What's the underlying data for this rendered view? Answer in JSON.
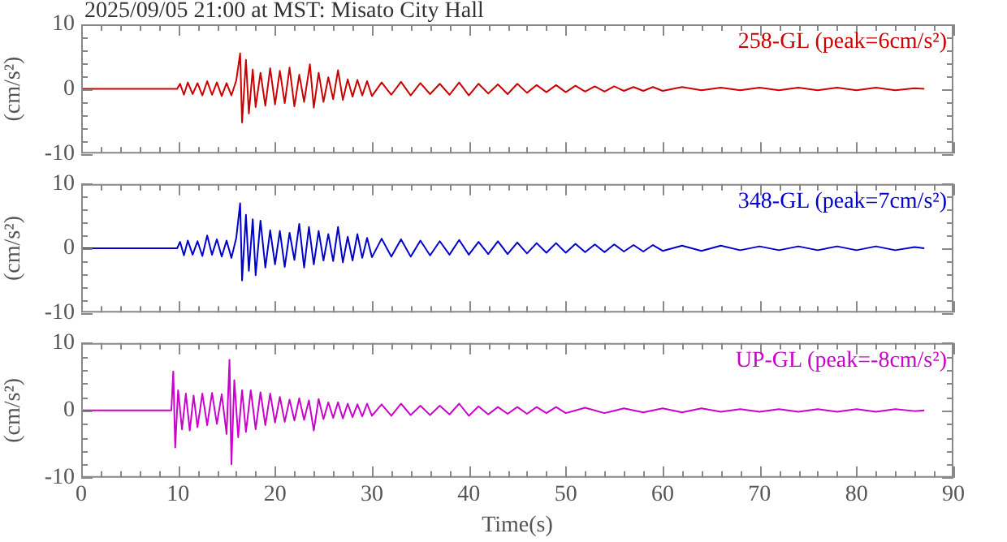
{
  "chart_data": [
    {
      "type": "line",
      "title": "2025/09/05 21:00 at MST: Misato City Hall",
      "ylabel": "(cm/s²)",
      "marker": "none",
      "tick_labels": "y",
      "xlim": [
        0,
        90
      ],
      "xticks": [
        0,
        {
          "value": 2,
          "label": null
        },
        {
          "value": 4,
          "label": null
        },
        {
          "value": 6,
          "label": null
        },
        {
          "value": 8,
          "label": null
        },
        10,
        {
          "value": 12,
          "label": null
        },
        {
          "value": 14,
          "label": null
        },
        {
          "value": 16,
          "label": null
        },
        {
          "value": 18,
          "label": null
        },
        20,
        {
          "value": 22,
          "label": null
        },
        {
          "value": 24,
          "label": null
        },
        {
          "value": 26,
          "label": null
        },
        {
          "value": 28,
          "label": null
        },
        30,
        {
          "value": 32,
          "label": null
        },
        {
          "value": 34,
          "label": null
        },
        {
          "value": 36,
          "label": null
        },
        {
          "value": 38,
          "label": null
        },
        40,
        {
          "value": 42,
          "label": null
        },
        {
          "value": 44,
          "label": null
        },
        {
          "value": 46,
          "label": null
        },
        {
          "value": 48,
          "label": null
        },
        50,
        {
          "value": 52,
          "label": null
        },
        {
          "value": 54,
          "label": null
        },
        {
          "value": 56,
          "label": null
        },
        {
          "value": 58,
          "label": null
        },
        60,
        {
          "value": 62,
          "label": null
        },
        {
          "value": 64,
          "label": null
        },
        {
          "value": 66,
          "label": null
        },
        {
          "value": 68,
          "label": null
        },
        70,
        {
          "value": 72,
          "label": null
        },
        {
          "value": 74,
          "label": null
        },
        {
          "value": 76,
          "label": null
        },
        {
          "value": 78,
          "label": null
        },
        80,
        {
          "value": 82,
          "label": null
        },
        {
          "value": 84,
          "label": null
        },
        {
          "value": 86,
          "label": null
        },
        {
          "value": 88,
          "label": null
        },
        90
      ],
      "ylim": [
        -10,
        10
      ],
      "yticks": [
        -10,
        {
          "value": -8,
          "label": null
        },
        {
          "value": -6,
          "label": null
        },
        {
          "value": -4,
          "label": null
        },
        {
          "value": -2,
          "label": null
        },
        0,
        {
          "value": 2,
          "label": null
        },
        {
          "value": 4,
          "label": null
        },
        {
          "value": 6,
          "label": null
        },
        {
          "value": 8,
          "label": null
        },
        10
      ],
      "series": [
        {
          "name": "258-GL (peak=6cm/s²)",
          "color": "#cc0000",
          "x": [
            0,
            9.9,
            10.2,
            10.6,
            11,
            11.5,
            12,
            12.5,
            13,
            13.5,
            14,
            14.5,
            15,
            15.5,
            16,
            16.4,
            16.6,
            17,
            17.3,
            17.7,
            18,
            18.5,
            19,
            19.5,
            20,
            20.5,
            21,
            21.5,
            22,
            22.5,
            23,
            23.6,
            24,
            24.5,
            25,
            25.5,
            26,
            26.5,
            27,
            27.5,
            28,
            28.5,
            29,
            29.5,
            30,
            31,
            32,
            33,
            34,
            35,
            36,
            37,
            38,
            39,
            40,
            41,
            42,
            43,
            44,
            45,
            46,
            47,
            48,
            49,
            50,
            51,
            52,
            53,
            54,
            55,
            56,
            57,
            58,
            59,
            60,
            62,
            64,
            66,
            68,
            70,
            72,
            74,
            76,
            78,
            80,
            82,
            84,
            86,
            87
          ],
          "values": [
            0,
            0,
            0.8,
            -0.9,
            1,
            -0.8,
            0.9,
            -1,
            1.2,
            -0.9,
            1,
            -1.1,
            0.9,
            -1,
            1.3,
            5.5,
            -5.2,
            4.5,
            -3.8,
            3,
            -2.8,
            2.5,
            -2.6,
            3.2,
            -2.4,
            2.8,
            -2.2,
            3.3,
            -2.7,
            2.2,
            -2,
            3.8,
            -2.9,
            2.5,
            -2,
            1.8,
            -1.6,
            2.9,
            -1.7,
            1.5,
            -1.2,
            1.4,
            -1,
            1.2,
            -1.1,
            1,
            -0.9,
            1.1,
            -1,
            0.9,
            -0.8,
            0.8,
            -0.9,
            1,
            -1,
            0.8,
            -0.7,
            0.7,
            -0.8,
            0.8,
            -0.6,
            0.6,
            -0.5,
            0.6,
            -0.5,
            0.5,
            -0.4,
            0.4,
            -0.4,
            0.4,
            -0.3,
            0.3,
            -0.3,
            0.3,
            -0.3,
            0.3,
            -0.2,
            0.2,
            -0.2,
            0.2,
            -0.2,
            0.2,
            -0.2,
            0.2,
            -0.2,
            0.2,
            -0.2,
            0.1,
            0
          ]
        }
      ]
    },
    {
      "type": "line",
      "ylabel": "(cm/s²)",
      "marker": "none",
      "tick_labels": "y",
      "xlim": [
        0,
        90
      ],
      "xticks": [
        0,
        {
          "value": 2,
          "label": null
        },
        {
          "value": 4,
          "label": null
        },
        {
          "value": 6,
          "label": null
        },
        {
          "value": 8,
          "label": null
        },
        10,
        {
          "value": 12,
          "label": null
        },
        {
          "value": 14,
          "label": null
        },
        {
          "value": 16,
          "label": null
        },
        {
          "value": 18,
          "label": null
        },
        20,
        {
          "value": 22,
          "label": null
        },
        {
          "value": 24,
          "label": null
        },
        {
          "value": 26,
          "label": null
        },
        {
          "value": 28,
          "label": null
        },
        30,
        {
          "value": 32,
          "label": null
        },
        {
          "value": 34,
          "label": null
        },
        {
          "value": 36,
          "label": null
        },
        {
          "value": 38,
          "label": null
        },
        40,
        {
          "value": 42,
          "label": null
        },
        {
          "value": 44,
          "label": null
        },
        {
          "value": 46,
          "label": null
        },
        {
          "value": 48,
          "label": null
        },
        50,
        {
          "value": 52,
          "label": null
        },
        {
          "value": 54,
          "label": null
        },
        {
          "value": 56,
          "label": null
        },
        {
          "value": 58,
          "label": null
        },
        60,
        {
          "value": 62,
          "label": null
        },
        {
          "value": 64,
          "label": null
        },
        {
          "value": 66,
          "label": null
        },
        {
          "value": 68,
          "label": null
        },
        70,
        {
          "value": 72,
          "label": null
        },
        {
          "value": 74,
          "label": null
        },
        {
          "value": 76,
          "label": null
        },
        {
          "value": 78,
          "label": null
        },
        80,
        {
          "value": 82,
          "label": null
        },
        {
          "value": 84,
          "label": null
        },
        {
          "value": 86,
          "label": null
        },
        {
          "value": 88,
          "label": null
        },
        90
      ],
      "ylim": [
        -10,
        10
      ],
      "yticks": [
        -10,
        {
          "value": -8,
          "label": null
        },
        {
          "value": -6,
          "label": null
        },
        {
          "value": -4,
          "label": null
        },
        {
          "value": -2,
          "label": null
        },
        0,
        {
          "value": 2,
          "label": null
        },
        {
          "value": 4,
          "label": null
        },
        {
          "value": 6,
          "label": null
        },
        {
          "value": 8,
          "label": null
        },
        10
      ],
      "series": [
        {
          "name": "348-GL (peak=7cm/s²)",
          "color": "#0000cc",
          "x": [
            0,
            9.9,
            10.2,
            10.6,
            11,
            11.5,
            12,
            12.5,
            13,
            13.5,
            14,
            14.5,
            15,
            15.5,
            16,
            16.4,
            16.6,
            17,
            17.3,
            17.7,
            18,
            18.5,
            19,
            19.5,
            20,
            20.5,
            21,
            21.5,
            22,
            22.5,
            23,
            23.5,
            24,
            24.5,
            25,
            25.5,
            26,
            26.5,
            27,
            27.5,
            28,
            28.5,
            29,
            29.5,
            30,
            31,
            32,
            33,
            34,
            35,
            36,
            37,
            38,
            39,
            40,
            41,
            42,
            43,
            44,
            45,
            46,
            47,
            48,
            49,
            50,
            51,
            52,
            53,
            54,
            55,
            56,
            57,
            58,
            59,
            60,
            62,
            64,
            66,
            68,
            70,
            72,
            74,
            76,
            78,
            80,
            82,
            84,
            86,
            87
          ],
          "values": [
            0,
            0,
            1,
            -1.1,
            1.2,
            -1,
            1.1,
            -1.2,
            2,
            -1,
            1.4,
            -1.3,
            1.2,
            -1.5,
            1.6,
            7,
            -5,
            5.2,
            -3.5,
            4.5,
            -4.2,
            4.3,
            -3,
            2.8,
            -2.5,
            2.7,
            -2.9,
            2.4,
            -1.8,
            3.8,
            -3,
            3.3,
            -2.5,
            2.7,
            -1.9,
            2.2,
            -2,
            3.3,
            -2.2,
            1.8,
            -1.9,
            2.2,
            -1.5,
            1.6,
            -1.4,
            1.5,
            -1.3,
            1.4,
            -1.3,
            1.2,
            -1.1,
            1.1,
            -1,
            1.3,
            -1,
            1,
            -0.9,
            1.1,
            -0.9,
            0.9,
            -0.8,
            0.8,
            -0.7,
            0.8,
            -0.7,
            0.7,
            -0.6,
            0.6,
            -0.6,
            0.6,
            -0.5,
            0.5,
            -0.5,
            0.5,
            -0.4,
            0.4,
            -0.4,
            0.4,
            -0.3,
            0.3,
            -0.3,
            0.3,
            -0.3,
            0.3,
            -0.3,
            0.3,
            -0.3,
            0.2,
            0
          ]
        }
      ]
    },
    {
      "type": "line",
      "ylabel": "(cm/s²)",
      "xlabel": "Time(s)",
      "marker": "none",
      "xlim": [
        0,
        90
      ],
      "xticks": [
        0,
        {
          "value": 2,
          "label": null
        },
        {
          "value": 4,
          "label": null
        },
        {
          "value": 6,
          "label": null
        },
        {
          "value": 8,
          "label": null
        },
        10,
        {
          "value": 12,
          "label": null
        },
        {
          "value": 14,
          "label": null
        },
        {
          "value": 16,
          "label": null
        },
        {
          "value": 18,
          "label": null
        },
        20,
        {
          "value": 22,
          "label": null
        },
        {
          "value": 24,
          "label": null
        },
        {
          "value": 26,
          "label": null
        },
        {
          "value": 28,
          "label": null
        },
        30,
        {
          "value": 32,
          "label": null
        },
        {
          "value": 34,
          "label": null
        },
        {
          "value": 36,
          "label": null
        },
        {
          "value": 38,
          "label": null
        },
        40,
        {
          "value": 42,
          "label": null
        },
        {
          "value": 44,
          "label": null
        },
        {
          "value": 46,
          "label": null
        },
        {
          "value": 48,
          "label": null
        },
        50,
        {
          "value": 52,
          "label": null
        },
        {
          "value": 54,
          "label": null
        },
        {
          "value": 56,
          "label": null
        },
        {
          "value": 58,
          "label": null
        },
        60,
        {
          "value": 62,
          "label": null
        },
        {
          "value": 64,
          "label": null
        },
        {
          "value": 66,
          "label": null
        },
        {
          "value": 68,
          "label": null
        },
        70,
        {
          "value": 72,
          "label": null
        },
        {
          "value": 74,
          "label": null
        },
        {
          "value": 76,
          "label": null
        },
        {
          "value": 78,
          "label": null
        },
        80,
        {
          "value": 82,
          "label": null
        },
        {
          "value": 84,
          "label": null
        },
        {
          "value": 86,
          "label": null
        },
        {
          "value": 88,
          "label": null
        },
        90
      ],
      "ylim": [
        -10,
        10
      ],
      "yticks": [
        -10,
        {
          "value": -8,
          "label": null
        },
        {
          "value": -6,
          "label": null
        },
        {
          "value": -4,
          "label": null
        },
        {
          "value": -2,
          "label": null
        },
        0,
        {
          "value": 2,
          "label": null
        },
        {
          "value": 4,
          "label": null
        },
        {
          "value": 6,
          "label": null
        },
        {
          "value": 8,
          "label": null
        },
        10
      ],
      "series": [
        {
          "name": "UP-GL (peak=-8cm/s²)",
          "color": "#cc00cc",
          "x": [
            0,
            9.3,
            9.5,
            9.7,
            10,
            10.4,
            10.8,
            11.2,
            11.6,
            12,
            12.5,
            13,
            13.5,
            14,
            14.5,
            15,
            15.3,
            15.5,
            15.8,
            16.2,
            16.6,
            17,
            17.5,
            18,
            18.5,
            19,
            19.5,
            20,
            20.5,
            21,
            21.5,
            22,
            22.5,
            23,
            23.5,
            24,
            24.5,
            25,
            25.5,
            26,
            26.5,
            27,
            27.5,
            28,
            28.5,
            29,
            29.5,
            30,
            31,
            32,
            33,
            34,
            35,
            36,
            37,
            38,
            39,
            40,
            41,
            42,
            43,
            44,
            45,
            46,
            47,
            48,
            49,
            50,
            52,
            54,
            56,
            58,
            60,
            62,
            64,
            66,
            68,
            70,
            72,
            74,
            76,
            78,
            80,
            82,
            84,
            86,
            87
          ],
          "values": [
            0,
            0,
            5.8,
            -5.5,
            3,
            -2.8,
            2.5,
            -3,
            2.2,
            -2.5,
            2.5,
            -2.2,
            2.6,
            -2,
            2.4,
            -3.5,
            7.5,
            -8,
            4.5,
            -4,
            3,
            -3.2,
            3,
            -2.8,
            2.7,
            -2.2,
            2.5,
            -1.8,
            2,
            -1.7,
            1.6,
            -1.5,
            1.8,
            -1.4,
            1.5,
            -3,
            1.7,
            -1.3,
            1.2,
            -1.1,
            1.2,
            -1.2,
            1,
            -1,
            0.9,
            -0.9,
            1,
            -0.8,
            0.9,
            -0.8,
            1,
            -0.7,
            0.7,
            -0.7,
            0.7,
            -0.6,
            1,
            -0.8,
            0.6,
            -0.6,
            0.5,
            -0.5,
            0.5,
            -0.5,
            0.5,
            -0.4,
            0.5,
            -0.4,
            0.4,
            -0.4,
            0.3,
            -0.3,
            0.3,
            -0.3,
            0.3,
            -0.2,
            0.2,
            -0.2,
            0.2,
            -0.2,
            0.2,
            -0.2,
            0.2,
            -0.2,
            0.2,
            -0.1,
            0
          ]
        }
      ]
    }
  ]
}
